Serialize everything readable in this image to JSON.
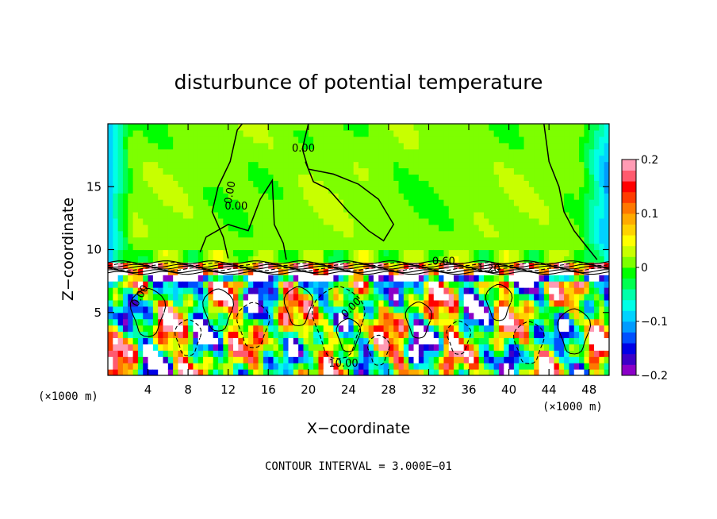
{
  "chart_data": {
    "type": "heatmap",
    "title": "disturbunce of potential temperature",
    "xlabel": "X−coordinate",
    "ylabel": "Z−coordinate",
    "x_unit": "(×1000 m)",
    "y_unit": "(×1000 m)",
    "xlim": [
      0,
      50
    ],
    "ylim": [
      0,
      20
    ],
    "x_ticks": [
      4,
      8,
      12,
      16,
      20,
      24,
      28,
      32,
      36,
      40,
      44,
      48
    ],
    "y_ticks": [
      5,
      10,
      15
    ],
    "colorbar": {
      "range": [
        -0.2,
        0.2
      ],
      "tick_values": [
        -0.2,
        -0.1,
        0,
        0.1,
        0.2
      ],
      "tick_labels": [
        "−0.2",
        "−0.1",
        "0",
        "0.1",
        "0.2"
      ],
      "levels": [
        "#8b00c8",
        "#3c00c8",
        "#0000e6",
        "#0050ff",
        "#009bff",
        "#00d2ff",
        "#00ffe6",
        "#00ffaa",
        "#00ff50",
        "#00ff00",
        "#7dff00",
        "#c8ff00",
        "#ffff00",
        "#ffd200",
        "#ffaa00",
        "#ff7800",
        "#ff3c00",
        "#ff0000",
        "#ff5a6e",
        "#ff9bb4"
      ]
    },
    "contour_labels": [
      "0.00",
      "0.00",
      "0.00",
      "0.60",
      "1.20",
      "0.00",
      "0.00",
      "10.00"
    ],
    "contour_interval_label": "CONTOUR INTERVAL = 3.000E−01",
    "regions": {
      "upper_layer": "z 9–20: near zero (green), cyan/blue at lateral boundaries",
      "inversion_layer": "z ≈ 8–9: tightly packed contour lines",
      "lower_layer": "z 0–8: turbulent eddies ranging from −0.2 to 0.2"
    }
  }
}
